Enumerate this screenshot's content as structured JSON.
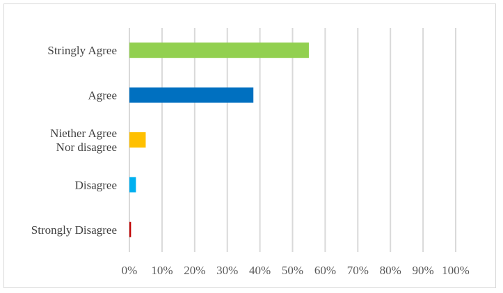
{
  "chart_data": {
    "type": "bar",
    "orientation": "horizontal",
    "title": "",
    "xlabel": "",
    "ylabel": "",
    "categories": [
      [
        "Stringly Agree"
      ],
      [
        "Agree"
      ],
      [
        "Niether Agree",
        "Nor disagree"
      ],
      [
        "Disagree"
      ],
      [
        "Strongly Disagree"
      ]
    ],
    "values": [
      55,
      38,
      5,
      2,
      0.5
    ],
    "colors": [
      "#92d050",
      "#0070c0",
      "#ffc000",
      "#00b0f0",
      "#c00000"
    ],
    "xlim": [
      0,
      100
    ],
    "x_ticks": [
      "0%",
      "10%",
      "20%",
      "30%",
      "40%",
      "50%",
      "60%",
      "70%",
      "80%",
      "90%",
      "100%"
    ],
    "grid": true,
    "legend": "none"
  }
}
